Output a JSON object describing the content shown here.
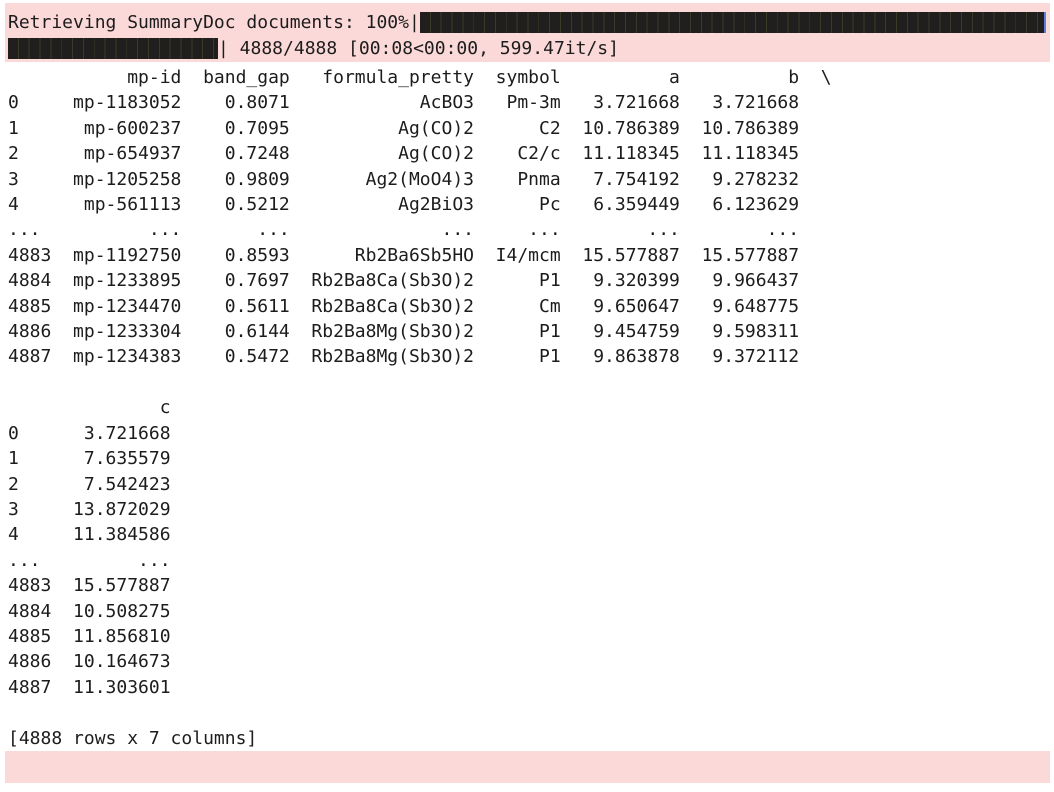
{
  "colors": {
    "stderr_background": "#fcd9d9",
    "progress_bar_fill": "#211e1e",
    "progress_bar_cursor": "#5b7fd4",
    "text": "#1c1c1c",
    "page_background": "#ffffff"
  },
  "progress": {
    "task_label": "Retrieving SummaryDoc documents:",
    "percent": "100%",
    "pipe": "|",
    "completed_count": "4888/4888",
    "timing": "[00:08<00:00, 599.47it/s]"
  },
  "dataframe": {
    "block1": {
      "columns": [
        "mp-id",
        "band_gap",
        "formula_pretty",
        "symbol",
        "a",
        "b"
      ],
      "continuation": "\\",
      "rows": [
        {
          "index": "0",
          "cells": [
            "mp-1183052",
            "0.8071",
            "AcBO3",
            "Pm-3m",
            "3.721668",
            "3.721668"
          ]
        },
        {
          "index": "1",
          "cells": [
            "mp-600237",
            "0.7095",
            "Ag(CO)2",
            "C2",
            "10.786389",
            "10.786389"
          ]
        },
        {
          "index": "2",
          "cells": [
            "mp-654937",
            "0.7248",
            "Ag(CO)2",
            "C2/c",
            "11.118345",
            "11.118345"
          ]
        },
        {
          "index": "3",
          "cells": [
            "mp-1205258",
            "0.9809",
            "Ag2(MoO4)3",
            "Pnma",
            "7.754192",
            "9.278232"
          ]
        },
        {
          "index": "4",
          "cells": [
            "mp-561113",
            "0.5212",
            "Ag2BiO3",
            "Pc",
            "6.359449",
            "6.123629"
          ]
        },
        {
          "index": "...",
          "cells": [
            "...",
            "...",
            "...",
            "...",
            "...",
            "..."
          ]
        },
        {
          "index": "4883",
          "cells": [
            "mp-1192750",
            "0.8593",
            "Rb2Ba6Sb5HO",
            "I4/mcm",
            "15.577887",
            "15.577887"
          ]
        },
        {
          "index": "4884",
          "cells": [
            "mp-1233895",
            "0.7697",
            "Rb2Ba8Ca(Sb3O)2",
            "P1",
            "9.320399",
            "9.966437"
          ]
        },
        {
          "index": "4885",
          "cells": [
            "mp-1234470",
            "0.5611",
            "Rb2Ba8Ca(Sb3O)2",
            "Cm",
            "9.650647",
            "9.648775"
          ]
        },
        {
          "index": "4886",
          "cells": [
            "mp-1233304",
            "0.6144",
            "Rb2Ba8Mg(Sb3O)2",
            "P1",
            "9.454759",
            "9.598311"
          ]
        },
        {
          "index": "4887",
          "cells": [
            "mp-1234383",
            "0.5472",
            "Rb2Ba8Mg(Sb3O)2",
            "P1",
            "9.863878",
            "9.372112"
          ]
        }
      ]
    },
    "block2": {
      "columns": [
        "c"
      ],
      "continuation": "",
      "rows": [
        {
          "index": "0",
          "cells": [
            "3.721668"
          ]
        },
        {
          "index": "1",
          "cells": [
            "7.635579"
          ]
        },
        {
          "index": "2",
          "cells": [
            "7.542423"
          ]
        },
        {
          "index": "3",
          "cells": [
            "13.872029"
          ]
        },
        {
          "index": "4",
          "cells": [
            "11.384586"
          ]
        },
        {
          "index": "...",
          "cells": [
            "..."
          ]
        },
        {
          "index": "4883",
          "cells": [
            "15.577887"
          ]
        },
        {
          "index": "4884",
          "cells": [
            "10.508275"
          ]
        },
        {
          "index": "4885",
          "cells": [
            "11.856810"
          ]
        },
        {
          "index": "4886",
          "cells": [
            "10.164673"
          ]
        },
        {
          "index": "4887",
          "cells": [
            "11.303601"
          ]
        }
      ]
    },
    "footer": "[4888 rows x 7 columns]"
  }
}
